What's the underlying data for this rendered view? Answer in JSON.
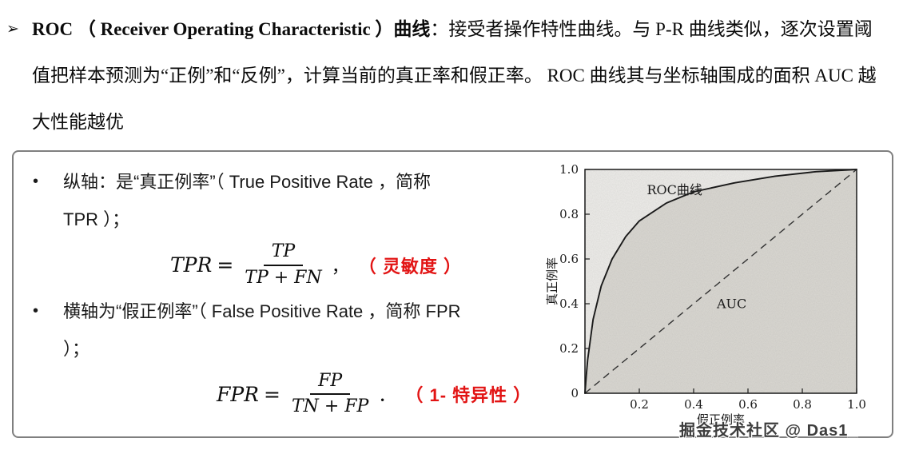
{
  "intro": {
    "marker": "➢",
    "lead_bold": "ROC （ Receiver Operating Characteristic ）曲线",
    "body": "：接受者操作特性曲线。与 P-R 曲线类似，逐次设置阈值把样本预测为“正例”和“反例”，计算当前的真正率和假正率。 ROC 曲线其与坐标轴围成的面积 AUC 越大性能越优"
  },
  "panel": {
    "bullet_marker": "•",
    "bullet1": "纵轴：是“真正例率”（ True Positive Rate ，简称 TPR ）；",
    "bullet2": "横轴为“假正例率”（ False Positive Rate ，简称 FPR ）；",
    "formula1": {
      "lhs": "TPR",
      "eq": "=",
      "num": "TP",
      "den": "TP + FN",
      "tail": "，",
      "note": "（ 灵敏度 ）"
    },
    "formula2": {
      "lhs": "FPR",
      "eq": "=",
      "num": "FP",
      "den": "TN + FP",
      "tail": "．",
      "note": "（ 1- 特异性 ）"
    }
  },
  "chart_data": {
    "type": "line",
    "xlabel": "假正例率",
    "ylabel": "真正例率",
    "xlim": [
      0,
      1
    ],
    "ylim": [
      0,
      1
    ],
    "grid": false,
    "legend": "none",
    "auc_shaded": true,
    "x_tick_values": [
      0.2,
      0.4,
      0.6,
      0.8,
      1.0
    ],
    "x_tick_labels": [
      "0.2",
      "0.4",
      "0.6",
      "0.8",
      "1.0"
    ],
    "y_tick_values": [
      0,
      0.2,
      0.4,
      0.6,
      0.8,
      1.0
    ],
    "y_tick_labels": [
      "0",
      "0.2",
      "0.4",
      "0.6",
      "0.8",
      "1.0"
    ],
    "series": [
      {
        "name": "ROC曲线",
        "style": "solid",
        "x": [
          0,
          0.005,
          0.01,
          0.03,
          0.06,
          0.1,
          0.15,
          0.2,
          0.3,
          0.4,
          0.55,
          0.7,
          0.85,
          1.0
        ],
        "y": [
          0,
          0.08,
          0.15,
          0.33,
          0.48,
          0.6,
          0.7,
          0.77,
          0.85,
          0.9,
          0.94,
          0.97,
          0.99,
          1.0
        ]
      },
      {
        "name": "对角线",
        "style": "dashed",
        "x": [
          0,
          1
        ],
        "y": [
          0,
          1
        ]
      }
    ],
    "annotations": [
      {
        "text": "ROC曲线",
        "x": 0.33,
        "y": 0.89
      },
      {
        "text": "AUC",
        "x": 0.54,
        "y": 0.38
      }
    ]
  },
  "watermark": "掘金技术社区 @ Das1_",
  "colors": {
    "note_red": "#e21414",
    "text": "#111111",
    "chart_ink": "#1a1a1a"
  }
}
